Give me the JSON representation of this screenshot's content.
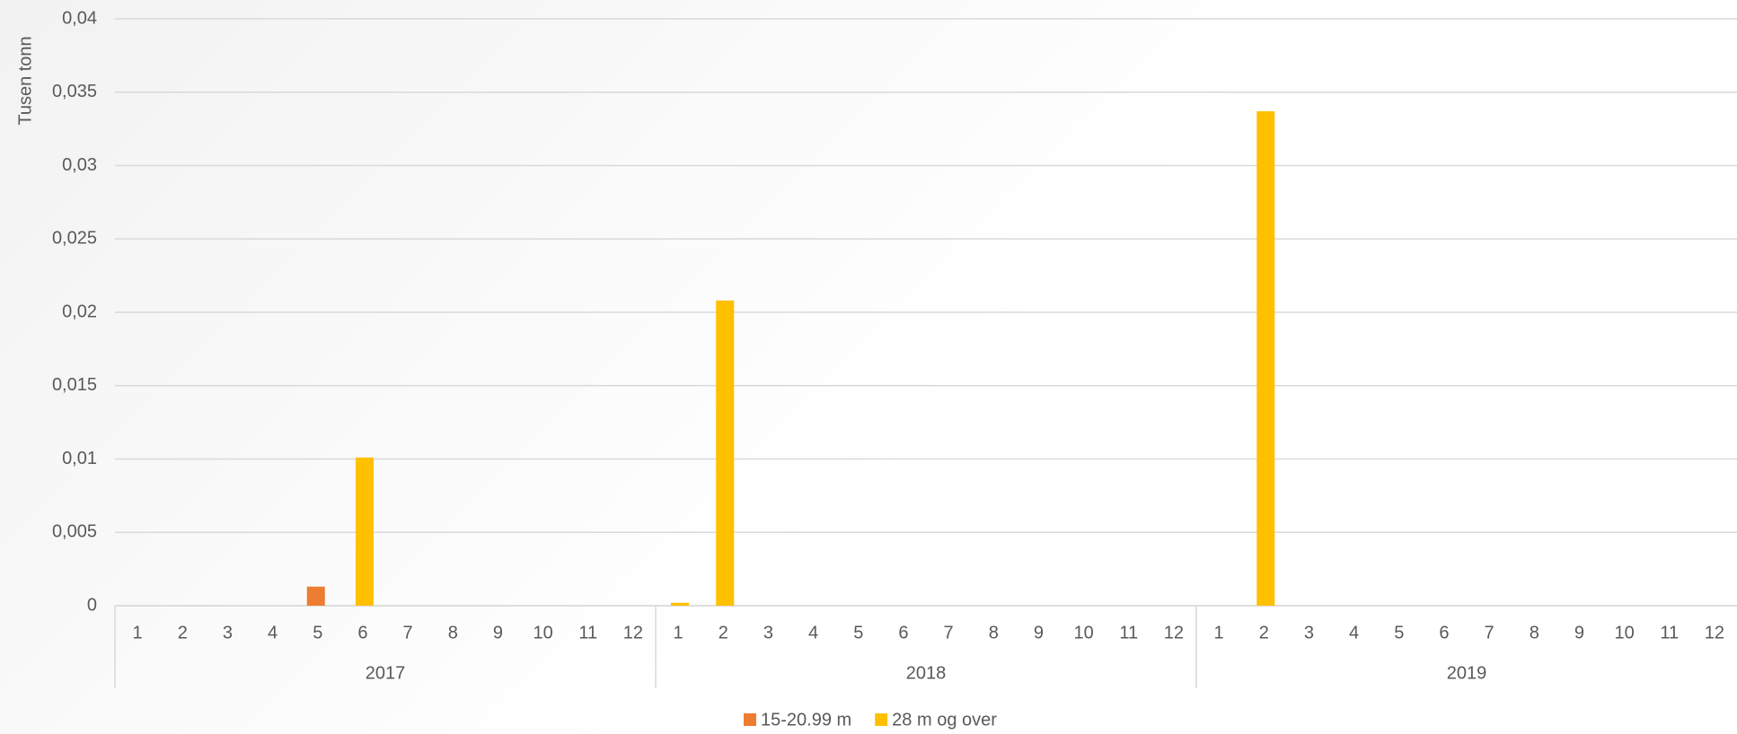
{
  "chart_data": {
    "type": "bar",
    "y_label": "Tusen tonn",
    "categories": [
      "1",
      "2",
      "3",
      "4",
      "5",
      "6",
      "7",
      "8",
      "9",
      "10",
      "11",
      "12",
      "1",
      "2",
      "3",
      "4",
      "5",
      "6",
      "7",
      "8",
      "9",
      "10",
      "11",
      "12",
      "1",
      "2",
      "3",
      "4",
      "5",
      "6",
      "7",
      "8",
      "9",
      "10",
      "11",
      "12"
    ],
    "groups": [
      "2017",
      "2018",
      "2019"
    ],
    "series": [
      {
        "name": "15-20.99 m",
        "color": "#ed7d31",
        "values": [
          null,
          null,
          null,
          null,
          0.0013,
          null,
          null,
          null,
          null,
          null,
          null,
          null,
          null,
          null,
          null,
          null,
          null,
          null,
          null,
          null,
          null,
          null,
          null,
          null,
          null,
          null,
          null,
          null,
          null,
          null,
          null,
          null,
          null,
          null,
          null,
          null
        ]
      },
      {
        "name": "28 m og over",
        "color": "#ffc000",
        "values": [
          null,
          null,
          null,
          null,
          null,
          0.0101,
          null,
          null,
          null,
          null,
          null,
          null,
          0.0002,
          0.0208,
          null,
          null,
          null,
          null,
          null,
          null,
          null,
          null,
          null,
          null,
          null,
          0.0337,
          null,
          null,
          null,
          null,
          null,
          null,
          null,
          null,
          null,
          null
        ]
      }
    ],
    "ylim": [
      0,
      0.04
    ],
    "yticks": [
      0,
      {
        "value": 0.005,
        "label": "0,005"
      },
      {
        "value": 0.01,
        "label": "0,01"
      },
      {
        "value": 0.015,
        "label": "0,015"
      },
      {
        "value": 0.02,
        "label": "0,02"
      },
      {
        "value": 0.025,
        "label": "0,025"
      },
      {
        "value": 0.03,
        "label": "0,03"
      },
      {
        "value": 0.035,
        "label": "0,035"
      },
      {
        "value": 0.04,
        "label": "0,04"
      }
    ],
    "grid": true,
    "legend": "bottom"
  }
}
